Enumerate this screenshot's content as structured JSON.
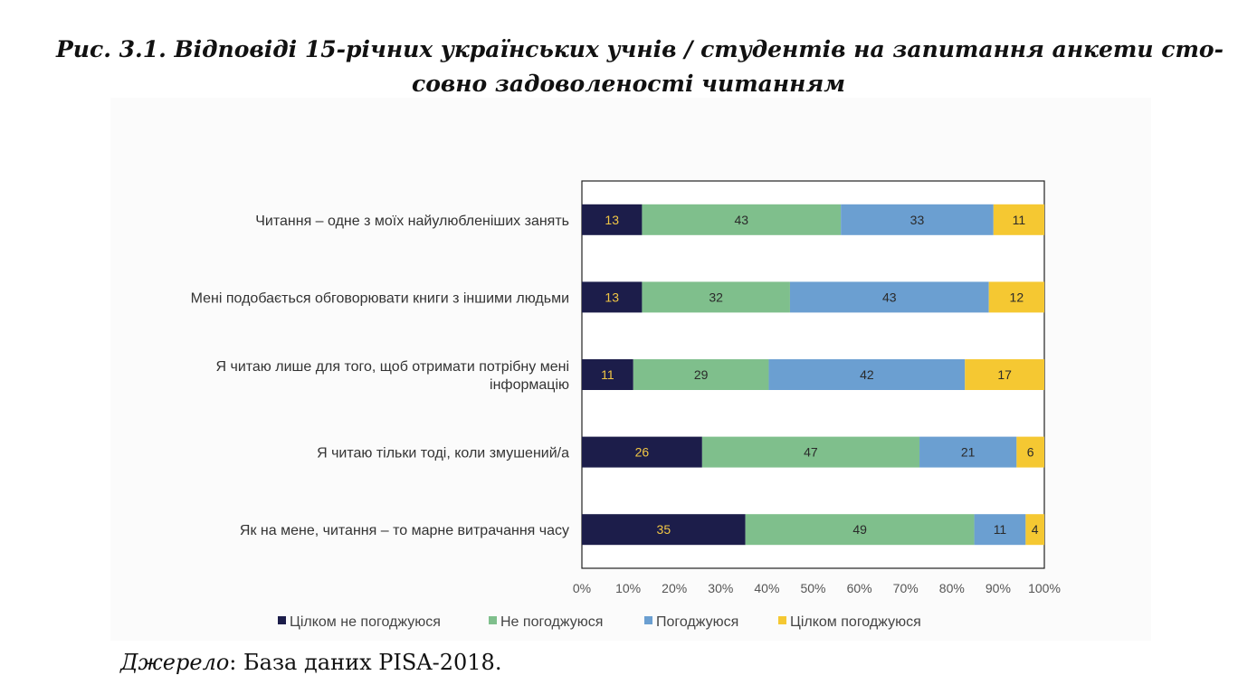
{
  "caption": {
    "line1": "Рис. 3.1. Відповіді 15-річних українських учнів / студентів на запитання анкети сто-",
    "line2": "совно задоволеності читанням"
  },
  "source": {
    "label": "Джерело",
    "text": ": База даних PISA-2018."
  },
  "chart_data": {
    "type": "bar",
    "orientation": "horizontal",
    "stacked": "percent",
    "categories": [
      [
        "Читання – одне з моїх найулюбленіших занять"
      ],
      [
        "Мені подобається обговорювати книги з іншими людьми"
      ],
      [
        "Я читаю лише для того, щоб отримати потрібну мені",
        "інформацію"
      ],
      [
        "Я читаю тільки тоді, коли змушений/а"
      ],
      [
        "Як на мене, читання – то марне витрачання часу"
      ]
    ],
    "series": [
      {
        "name": "Цілком не погоджуюся",
        "color": "#1c1d4a",
        "label_color": "#f2c744",
        "values": [
          13,
          13,
          11,
          26,
          35
        ]
      },
      {
        "name": "Не погоджуюся",
        "color": "#7fbf8c",
        "label_color": "#2a2a2a",
        "values": [
          43,
          32,
          29,
          47,
          49
        ]
      },
      {
        "name": "Погоджуюся",
        "color": "#6b9fd1",
        "label_color": "#2a2a2a",
        "values": [
          33,
          43,
          42,
          21,
          11
        ]
      },
      {
        "name": "Цілком погоджуюся",
        "color": "#f5c832",
        "label_color": "#2a2a2a",
        "values": [
          11,
          12,
          17,
          6,
          4
        ]
      }
    ],
    "xticks": [
      "0%",
      "10%",
      "20%",
      "30%",
      "40%",
      "50%",
      "60%",
      "70%",
      "80%",
      "90%",
      "100%"
    ],
    "xlim": [
      0,
      100
    ],
    "legend_position": "bottom",
    "grid": false
  }
}
